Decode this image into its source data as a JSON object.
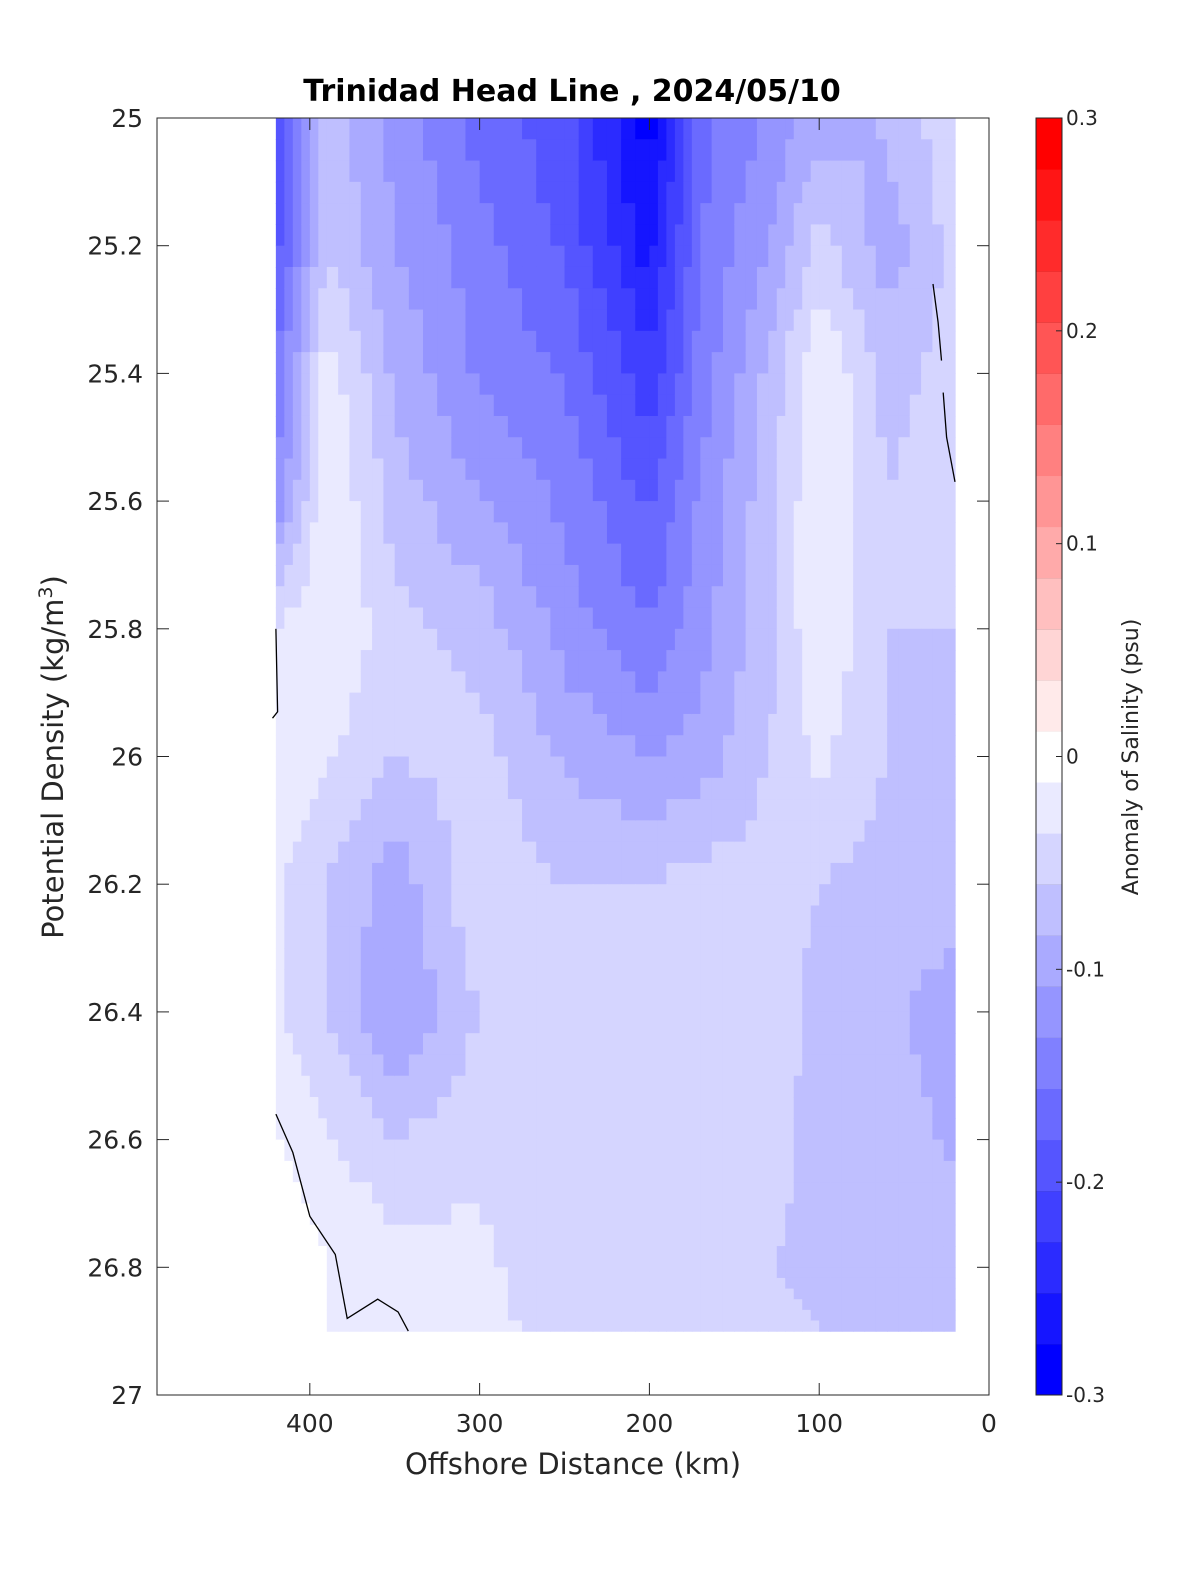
{
  "chart_data": {
    "type": "heatmap",
    "title": "Trinidad Head Line , 2024/05/10",
    "xlabel": "Offshore Distance (km)",
    "ylabel": "Potential Density (kg/m",
    "ylabel_sup": "3",
    "ylabel_close": ")",
    "xlim": [
      490,
      0
    ],
    "ylim": [
      27,
      25
    ],
    "x_reversed": true,
    "y_reversed": true,
    "xticks": [
      400,
      300,
      200,
      100,
      0
    ],
    "yticks": [
      25,
      25.2,
      25.4,
      25.6,
      25.8,
      26,
      26.2,
      26.4,
      26.6,
      26.8,
      27
    ],
    "colorbar": {
      "label": "Anomaly of Salinity (psu)",
      "range": [
        -0.3,
        0.3
      ],
      "ticks": [
        "0.3",
        "0.2",
        "0.1",
        "0",
        "-0.1",
        "-0.2",
        "-0.3"
      ],
      "tick_values": [
        0.3,
        0.2,
        0.1,
        0,
        -0.1,
        -0.2,
        -0.3
      ],
      "levels": [
        -0.3,
        -0.275,
        -0.25,
        -0.225,
        -0.2,
        -0.175,
        -0.15,
        -0.125,
        -0.1,
        -0.075,
        -0.05,
        -0.025,
        0,
        0.025,
        0.05,
        0.075,
        0.1,
        0.125,
        0.15,
        0.175,
        0.2,
        0.225,
        0.25,
        0.275,
        0.3
      ],
      "colors": [
        "#0000ff",
        "#1515ff",
        "#2b2bff",
        "#4040ff",
        "#5555ff",
        "#6a6aff",
        "#8080ff",
        "#9595ff",
        "#aaaaff",
        "#bfbfff",
        "#d5d5ff",
        "#eaeaff",
        "#ffffff",
        "#ffeaea",
        "#ffd5d5",
        "#ffbfbf",
        "#ffaaaa",
        "#ff9595",
        "#ff8080",
        "#ff6a6a",
        "#ff5555",
        "#ff4040",
        "#ff2b2b",
        "#ff1515",
        "#ff0000"
      ]
    },
    "data_extent": {
      "x": [
        420,
        0
      ],
      "y": [
        25,
        26.9
      ]
    },
    "columns_x": [
      420,
      390,
      350,
      300,
      250,
      200,
      170,
      130,
      100,
      60,
      20
    ],
    "rows_y": [
      25.0,
      25.2,
      25.4,
      25.6,
      25.8,
      26.0,
      26.2,
      26.4,
      26.6,
      26.8,
      26.9
    ],
    "anomaly_grid": [
      [
        -0.21,
        -0.06,
        -0.11,
        -0.16,
        -0.19,
        -0.29,
        -0.16,
        -0.12,
        -0.09,
        -0.07,
        -0.03
      ],
      [
        -0.19,
        -0.05,
        -0.1,
        -0.14,
        -0.18,
        -0.26,
        -0.15,
        -0.1,
        -0.04,
        -0.09,
        -0.04
      ],
      [
        -0.15,
        -0.01,
        -0.08,
        -0.13,
        -0.15,
        -0.22,
        -0.14,
        -0.07,
        0.0,
        -0.06,
        -0.04
      ],
      [
        -0.12,
        0.0,
        -0.06,
        -0.1,
        -0.13,
        -0.18,
        -0.12,
        -0.06,
        0.0,
        -0.05,
        -0.03
      ],
      [
        -0.02,
        0.0,
        -0.04,
        -0.06,
        -0.11,
        -0.15,
        -0.11,
        -0.06,
        0.0,
        -0.05,
        -0.05
      ],
      [
        0.0,
        -0.02,
        -0.05,
        -0.04,
        -0.08,
        -0.1,
        -0.09,
        -0.05,
        -0.02,
        -0.05,
        -0.06
      ],
      [
        -0.02,
        -0.05,
        -0.09,
        -0.03,
        -0.05,
        -0.05,
        -0.04,
        -0.04,
        -0.05,
        -0.06,
        -0.06
      ],
      [
        -0.02,
        -0.05,
        -0.1,
        -0.05,
        -0.04,
        -0.03,
        -0.03,
        -0.03,
        -0.06,
        -0.07,
        -0.09
      ],
      [
        0.0,
        -0.02,
        -0.05,
        -0.03,
        -0.05,
        -0.05,
        -0.03,
        -0.03,
        -0.07,
        -0.06,
        -0.08
      ],
      [
        0.02,
        0.0,
        -0.01,
        -0.02,
        -0.04,
        -0.04,
        -0.03,
        -0.05,
        -0.06,
        -0.05,
        -0.06
      ],
      [
        0.02,
        0.0,
        0.0,
        -0.02,
        -0.03,
        -0.03,
        -0.03,
        -0.04,
        -0.05,
        -0.05,
        -0.05
      ]
    ],
    "zero_contour_segments": [
      [
        [
          420,
          25.8
        ],
        [
          419,
          25.93
        ],
        [
          422,
          25.94
        ]
      ],
      [
        [
          420,
          26.56
        ],
        [
          410,
          26.62
        ],
        [
          400,
          26.72
        ],
        [
          385,
          26.78
        ],
        [
          378,
          26.88
        ],
        [
          360,
          26.85
        ],
        [
          348,
          26.87
        ],
        [
          342,
          26.9
        ]
      ],
      [
        [
          33,
          25.26
        ],
        [
          30,
          25.32
        ],
        [
          28,
          25.38
        ]
      ],
      [
        [
          27,
          25.43
        ],
        [
          25,
          25.5
        ],
        [
          20,
          25.57
        ]
      ]
    ]
  }
}
